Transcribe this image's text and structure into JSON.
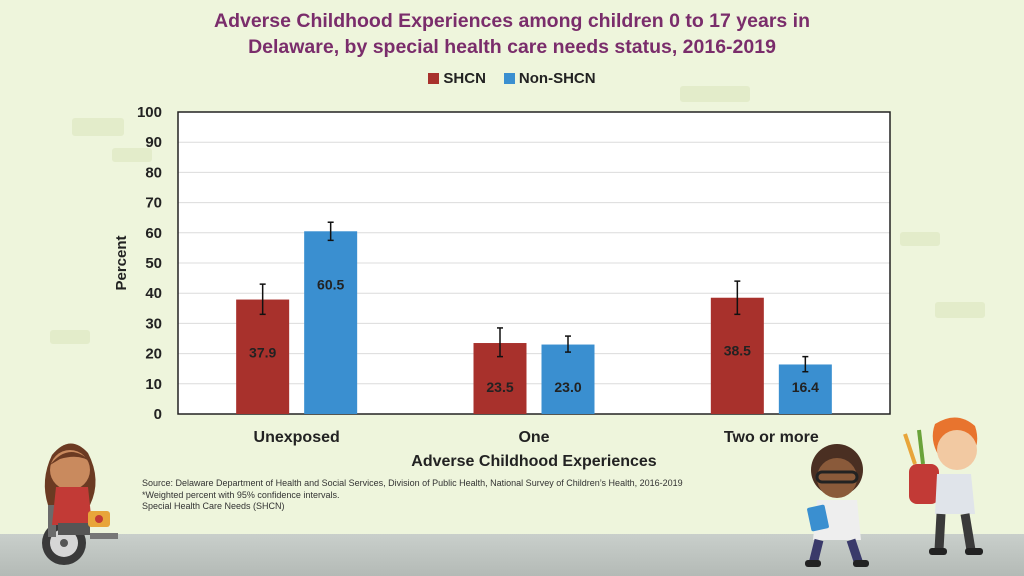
{
  "title_lines": [
    "Adverse Childhood Experiences among children 0 to 17 years in",
    "Delaware, by special health care needs status, 2016-2019"
  ],
  "legend": [
    {
      "label": "SHCN",
      "color": "#a8312c"
    },
    {
      "label": "Non-SHCN",
      "color": "#3a8fd0"
    }
  ],
  "chart_data": {
    "type": "bar",
    "categories": [
      "Unexposed",
      "One",
      "Two or more"
    ],
    "series": [
      {
        "name": "SHCN",
        "color": "#a8312c",
        "values": [
          37.9,
          23.5,
          38.5
        ],
        "ci": [
          [
            33,
            43
          ],
          [
            19,
            28.5
          ],
          [
            33,
            44
          ]
        ]
      },
      {
        "name": "Non-SHCN",
        "color": "#3a8fd0",
        "values": [
          60.5,
          23.0,
          16.4
        ],
        "ci": [
          [
            57.5,
            63.5
          ],
          [
            20.5,
            25.8
          ],
          [
            14,
            19
          ]
        ]
      }
    ],
    "data_labels": [
      "37.9",
      "60.5",
      "23.5",
      "23.0",
      "38.5",
      "16.4"
    ],
    "ylim": [
      0,
      100
    ],
    "yticks": [
      "0",
      "10",
      "20",
      "30",
      "40",
      "50",
      "60",
      "70",
      "80",
      "90",
      "100"
    ],
    "xlabel": "Adverse Childhood Experiences",
    "ylabel": "Percent",
    "grid": true,
    "legend_position": "top-center"
  },
  "footnotes": [
    "Source: Delaware Department of Health and Social Services, Division of Public Health, National Survey of Children’s Health, 2016-2019",
    "*Weighted percent with 95% confidence intervals.",
    "Special Health Care Needs (SHCN)"
  ],
  "illustrations": [
    "girl-in-wheelchair-illustration",
    "boy-with-book-illustration",
    "boy-with-backpack-illustration"
  ]
}
